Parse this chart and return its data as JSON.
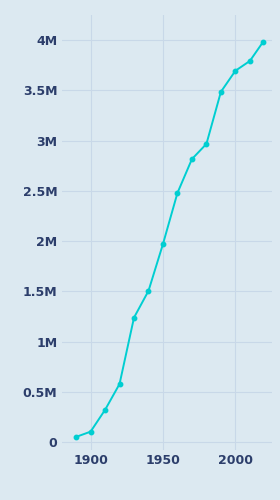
{
  "years": [
    1890,
    1900,
    1910,
    1920,
    1930,
    1940,
    1950,
    1960,
    1970,
    1980,
    1990,
    2000,
    2010,
    2019
  ],
  "population": [
    50395,
    102479,
    319198,
    576673,
    1238048,
    1504277,
    1970358,
    2479015,
    2816061,
    2966850,
    3485398,
    3694820,
    3792621,
    3979576
  ],
  "line_color": "#00CED1",
  "marker_color": "#00CED1",
  "bg_color": "#dce9f1",
  "grid_color": "#c8d8e8",
  "tick_label_color": "#2c3e6b",
  "ytick_labels": [
    "0",
    "0.5M",
    "1M",
    "1.5M",
    "2M",
    "2.5M",
    "3M",
    "3.5M",
    "4M"
  ],
  "ytick_values": [
    0,
    500000,
    1000000,
    1500000,
    2000000,
    2500000,
    3000000,
    3500000,
    4000000
  ],
  "xlim": [
    1880,
    2025
  ],
  "ylim": [
    -80000,
    4250000
  ],
  "xtick_values": [
    1900,
    1950,
    2000
  ],
  "xtick_labels": [
    "1900",
    "1950",
    "2000"
  ]
}
